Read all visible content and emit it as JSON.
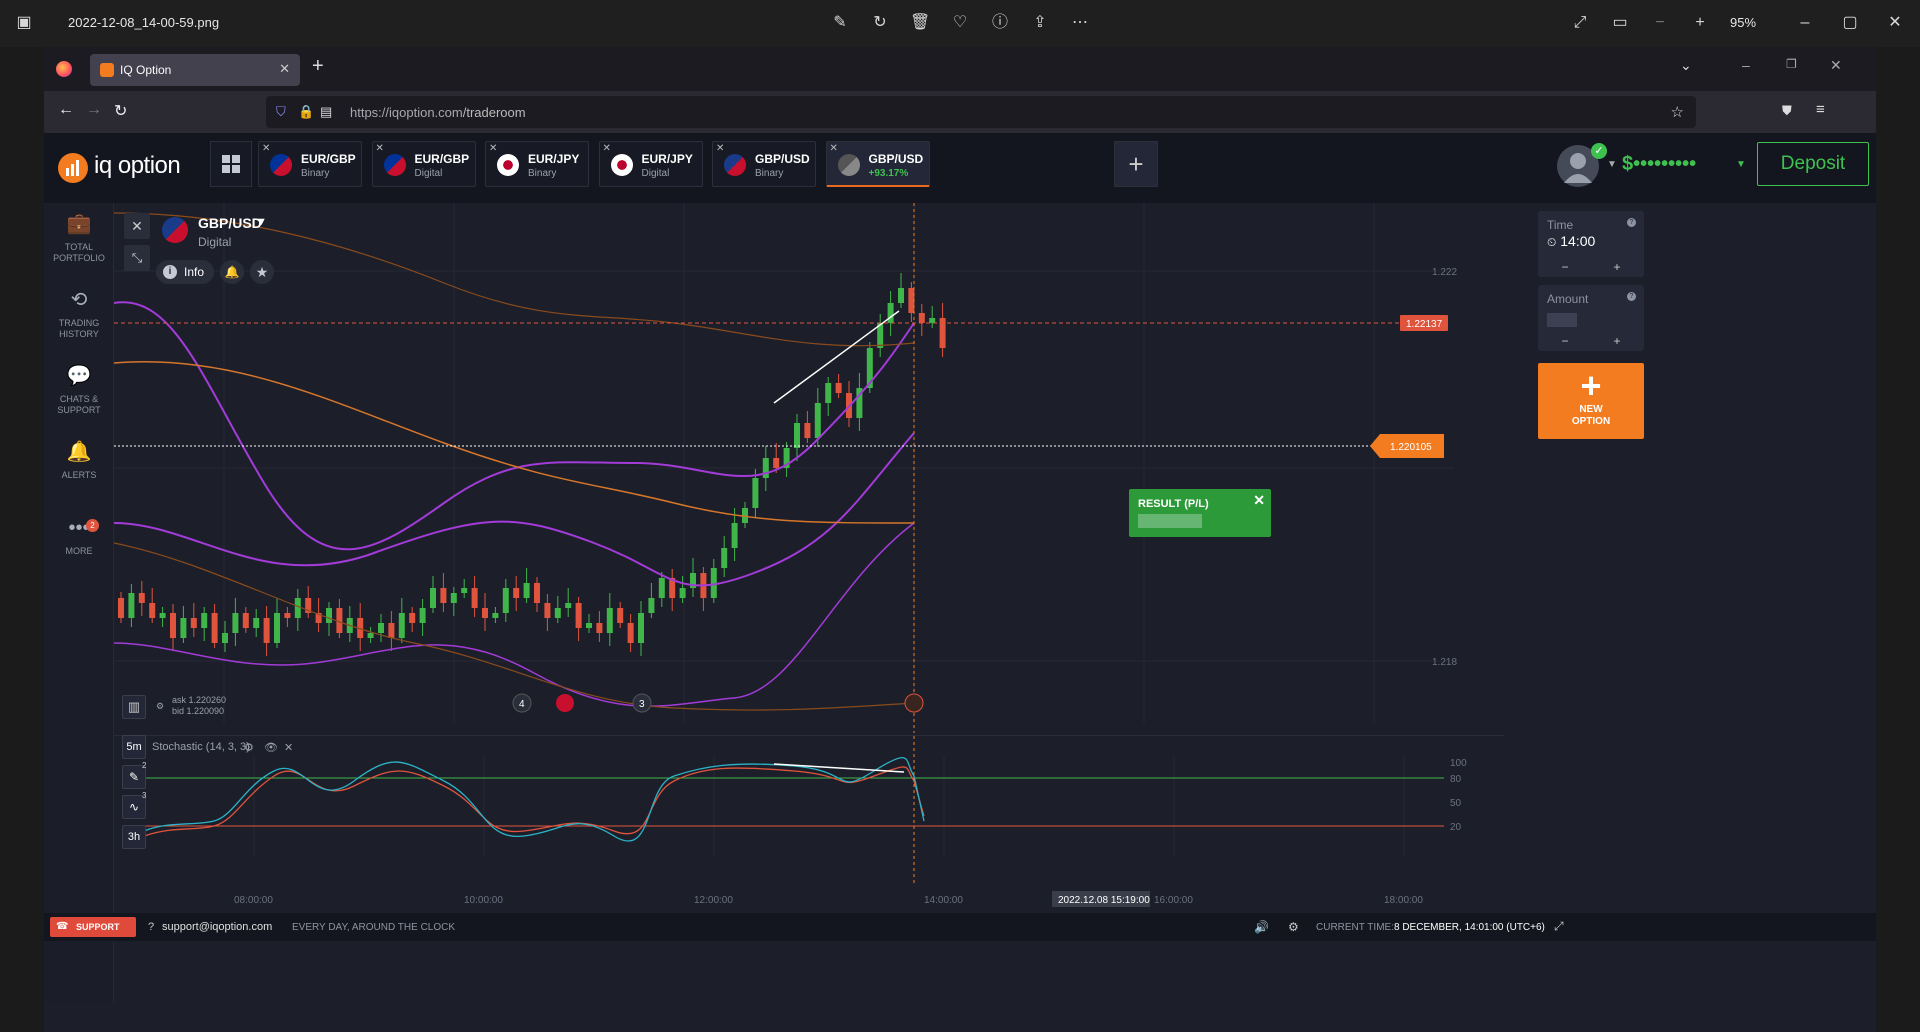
{
  "viewer": {
    "filename": "2022-12-08_14-00-59.png",
    "zoom": "95%"
  },
  "browser": {
    "tab_title": "IQ Option",
    "url_host": "https://iqoption.com",
    "url_path": "/traderoom"
  },
  "app": {
    "logo": "iq option",
    "asset_tabs": [
      {
        "name": "EUR/GBP",
        "type": "Binary"
      },
      {
        "name": "EUR/GBP",
        "type": "Digital"
      },
      {
        "name": "EUR/JPY",
        "type": "Binary"
      },
      {
        "name": "EUR/JPY",
        "type": "Digital"
      },
      {
        "name": "GBP/USD",
        "type": "Binary"
      },
      {
        "name": "GBP/USD",
        "type": "+93.17%"
      }
    ],
    "balance": "$•••••••••",
    "deposit_label": "Deposit"
  },
  "sidebar": {
    "items": [
      {
        "label_1": "TOTAL",
        "label_2": "PORTFOLIO"
      },
      {
        "label_1": "TRADING",
        "label_2": "HISTORY"
      },
      {
        "label_1": "CHATS &",
        "label_2": "SUPPORT"
      },
      {
        "label_1": "ALERTS",
        "label_2": ""
      },
      {
        "label_1": "MORE",
        "label_2": ""
      }
    ],
    "more_badge": "2"
  },
  "chart": {
    "asset": "GBP/USD",
    "asset_type": "Digital",
    "info_label": "Info",
    "price_high_label": "1.222",
    "price_low_label": "1.218",
    "strike_price": "1.22137",
    "current_price": "1.220105",
    "result_label": "RESULT (P/L)",
    "ask": "ask 1.220260",
    "bid": "bid 1.220090",
    "markers": [
      "4",
      "3"
    ],
    "timeframe": "5m",
    "tools_badge_1": "2",
    "tools_badge_2": "3",
    "range": "3h",
    "stochastic_label": "Stochastic (14, 3, 3)",
    "stoch_levels": [
      "100",
      "80",
      "50",
      "20"
    ],
    "time_ticks": [
      "08:00:00",
      "10:00:00",
      "12:00:00",
      "14:00:00",
      "16:00:00",
      "18:00:00"
    ],
    "cursor_time": "2022.12.08 15:19:00"
  },
  "right_panel": {
    "time_label": "Time",
    "time_value": "14:00",
    "amount_label": "Amount",
    "new_option_1": "NEW",
    "new_option_2": "OPTION"
  },
  "footer": {
    "support": "SUPPORT",
    "email": "support@iqoption.com",
    "hours": "EVERY DAY, AROUND THE CLOCK",
    "current_time_label": "CURRENT TIME:",
    "current_time": "8 DECEMBER, 14:01:00 (UTC+6)"
  },
  "colors": {
    "up": "#3fb54a",
    "down": "#e0543d",
    "bollinger": "#a23bd8",
    "ma": "#d7762a",
    "accent": "#f47c20",
    "result": "#2d9a3a"
  }
}
